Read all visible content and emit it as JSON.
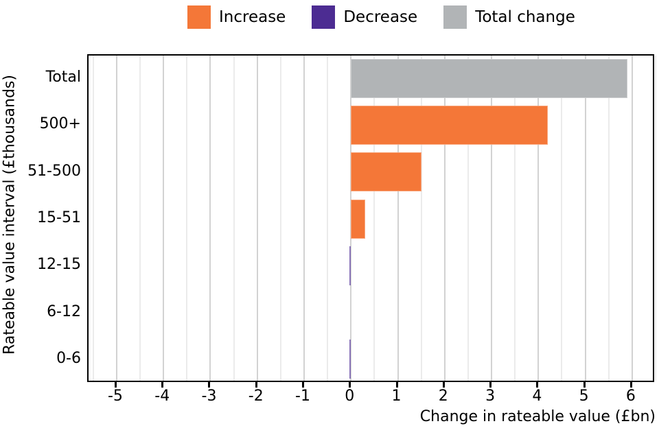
{
  "legend": {
    "items": [
      {
        "label": "Increase",
        "color": "#f47738"
      },
      {
        "label": "Decrease",
        "color": "#4c2c92"
      },
      {
        "label": "Total change",
        "color": "#b1b4b6"
      }
    ]
  },
  "chart_data": {
    "type": "bar",
    "orientation": "horizontal",
    "title": "",
    "categories": [
      "Total",
      "500+",
      "51-500",
      "15-51",
      "12-15",
      "6-12",
      "0-6"
    ],
    "values": [
      5.9,
      4.2,
      1.5,
      0.3,
      -0.04,
      0.0,
      -0.04
    ],
    "bar_series": [
      "Total change",
      "Increase",
      "Increase",
      "Increase",
      "Decrease",
      "Decrease",
      "Decrease"
    ],
    "bar_colors": [
      "#b1b4b6",
      "#f47738",
      "#f47738",
      "#f47738",
      "#4c2c92",
      "#4c2c92",
      "#4c2c92"
    ],
    "xlabel": "Change in rateable value (£bn)",
    "ylabel": "Rateable value interval (£thousands)",
    "xticks": [
      -5,
      -4,
      -3,
      -2,
      -1,
      0,
      1,
      2,
      3,
      4,
      5,
      6
    ],
    "xlim": [
      -5.6,
      6.5
    ],
    "grid": "vertical gridlines every 0.5, on",
    "legend_position": "top center",
    "colors": {
      "grid_major": "#d2d2d2",
      "grid_minor": "#ebebeb",
      "axis_border": "#000000",
      "background": "#ffffff"
    }
  }
}
